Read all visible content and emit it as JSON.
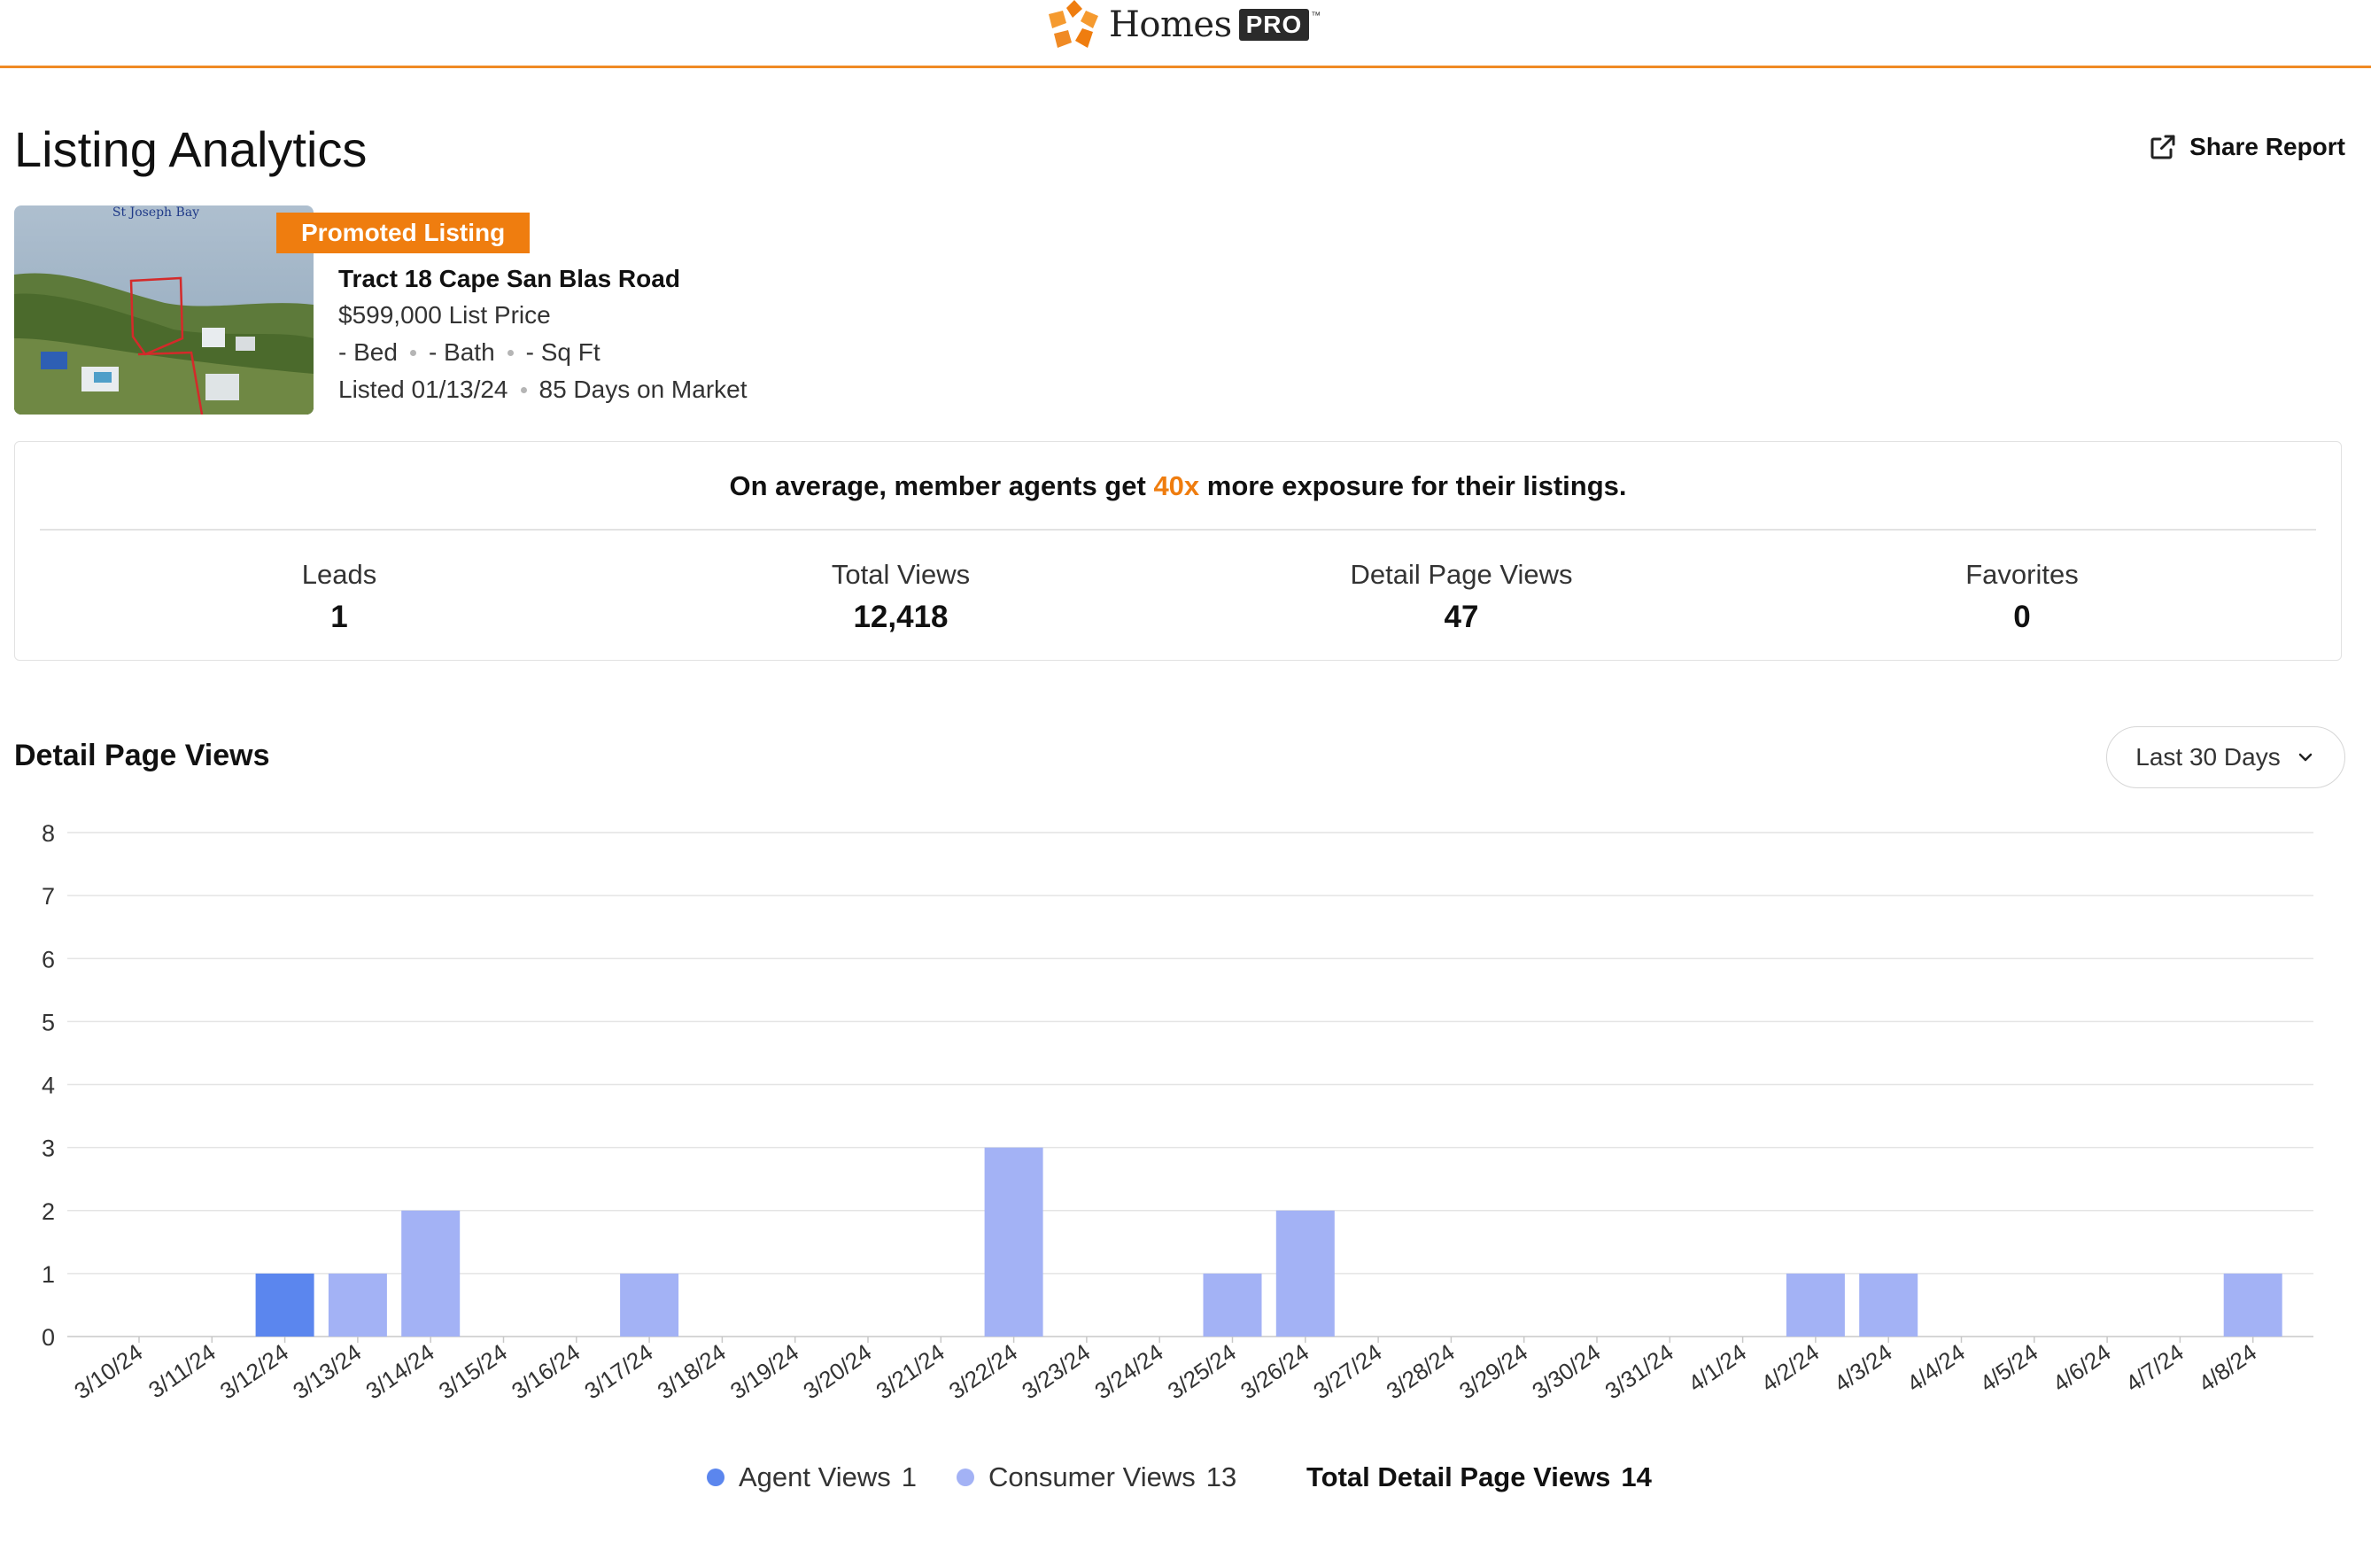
{
  "brand": {
    "name": "Homes",
    "badge": "PRO",
    "tm": "™",
    "accent": "#ef7d0f"
  },
  "page": {
    "title": "Listing Analytics",
    "share_label": "Share Report"
  },
  "listing": {
    "badge": "Promoted Listing",
    "photo_caption": "St Joseph Bay",
    "address": "Tract 18 Cape San Blas Road",
    "price": "$599,000 List Price",
    "bed": "- Bed",
    "bath": "- Bath",
    "sqft": "- Sq Ft",
    "listed": "Listed 01/13/24",
    "days_on_market": "85 Days on Market"
  },
  "stats": {
    "promo_before": "On average, member agents get ",
    "promo_accent": "40x",
    "promo_after": " more exposure for their listings.",
    "items": [
      {
        "label": "Leads",
        "value": "1"
      },
      {
        "label": "Total Views",
        "value": "12,418"
      },
      {
        "label": "Detail Page Views",
        "value": "47"
      },
      {
        "label": "Favorites",
        "value": "0"
      }
    ]
  },
  "chart_section": {
    "title": "Detail Page Views",
    "range_selected": "Last 30 Days"
  },
  "chart_data": {
    "type": "bar",
    "stacked": true,
    "categories": [
      "3/10/24",
      "3/11/24",
      "3/12/24",
      "3/13/24",
      "3/14/24",
      "3/15/24",
      "3/16/24",
      "3/17/24",
      "3/18/24",
      "3/19/24",
      "3/20/24",
      "3/21/24",
      "3/22/24",
      "3/23/24",
      "3/24/24",
      "3/25/24",
      "3/26/24",
      "3/27/24",
      "3/28/24",
      "3/29/24",
      "3/30/24",
      "3/31/24",
      "4/1/24",
      "4/2/24",
      "4/3/24",
      "4/4/24",
      "4/5/24",
      "4/6/24",
      "4/7/24",
      "4/8/24"
    ],
    "series": [
      {
        "name": "Agent Views",
        "color": "#5b86ee",
        "values": [
          0,
          0,
          1,
          0,
          0,
          0,
          0,
          0,
          0,
          0,
          0,
          0,
          0,
          0,
          0,
          0,
          0,
          0,
          0,
          0,
          0,
          0,
          0,
          0,
          0,
          0,
          0,
          0,
          0,
          0
        ]
      },
      {
        "name": "Consumer Views",
        "color": "#a3b2f5",
        "values": [
          0,
          0,
          0,
          1,
          2,
          0,
          0,
          1,
          0,
          0,
          0,
          0,
          3,
          0,
          0,
          1,
          2,
          0,
          0,
          0,
          0,
          0,
          0,
          1,
          1,
          0,
          0,
          0,
          0,
          1
        ]
      }
    ],
    "y_ticks": [
      "0",
      "1",
      "2",
      "3",
      "4",
      "5",
      "6",
      "7",
      "8"
    ],
    "ylim": [
      0,
      8
    ],
    "grid": true,
    "legend_position": "bottom"
  },
  "legend": {
    "agent": {
      "label": "Agent Views",
      "count": "1",
      "color": "#5b86ee"
    },
    "consumer": {
      "label": "Consumer Views",
      "count": "13",
      "color": "#a3b2f5"
    },
    "total": {
      "label": "Total Detail Page Views",
      "count": "14"
    }
  }
}
